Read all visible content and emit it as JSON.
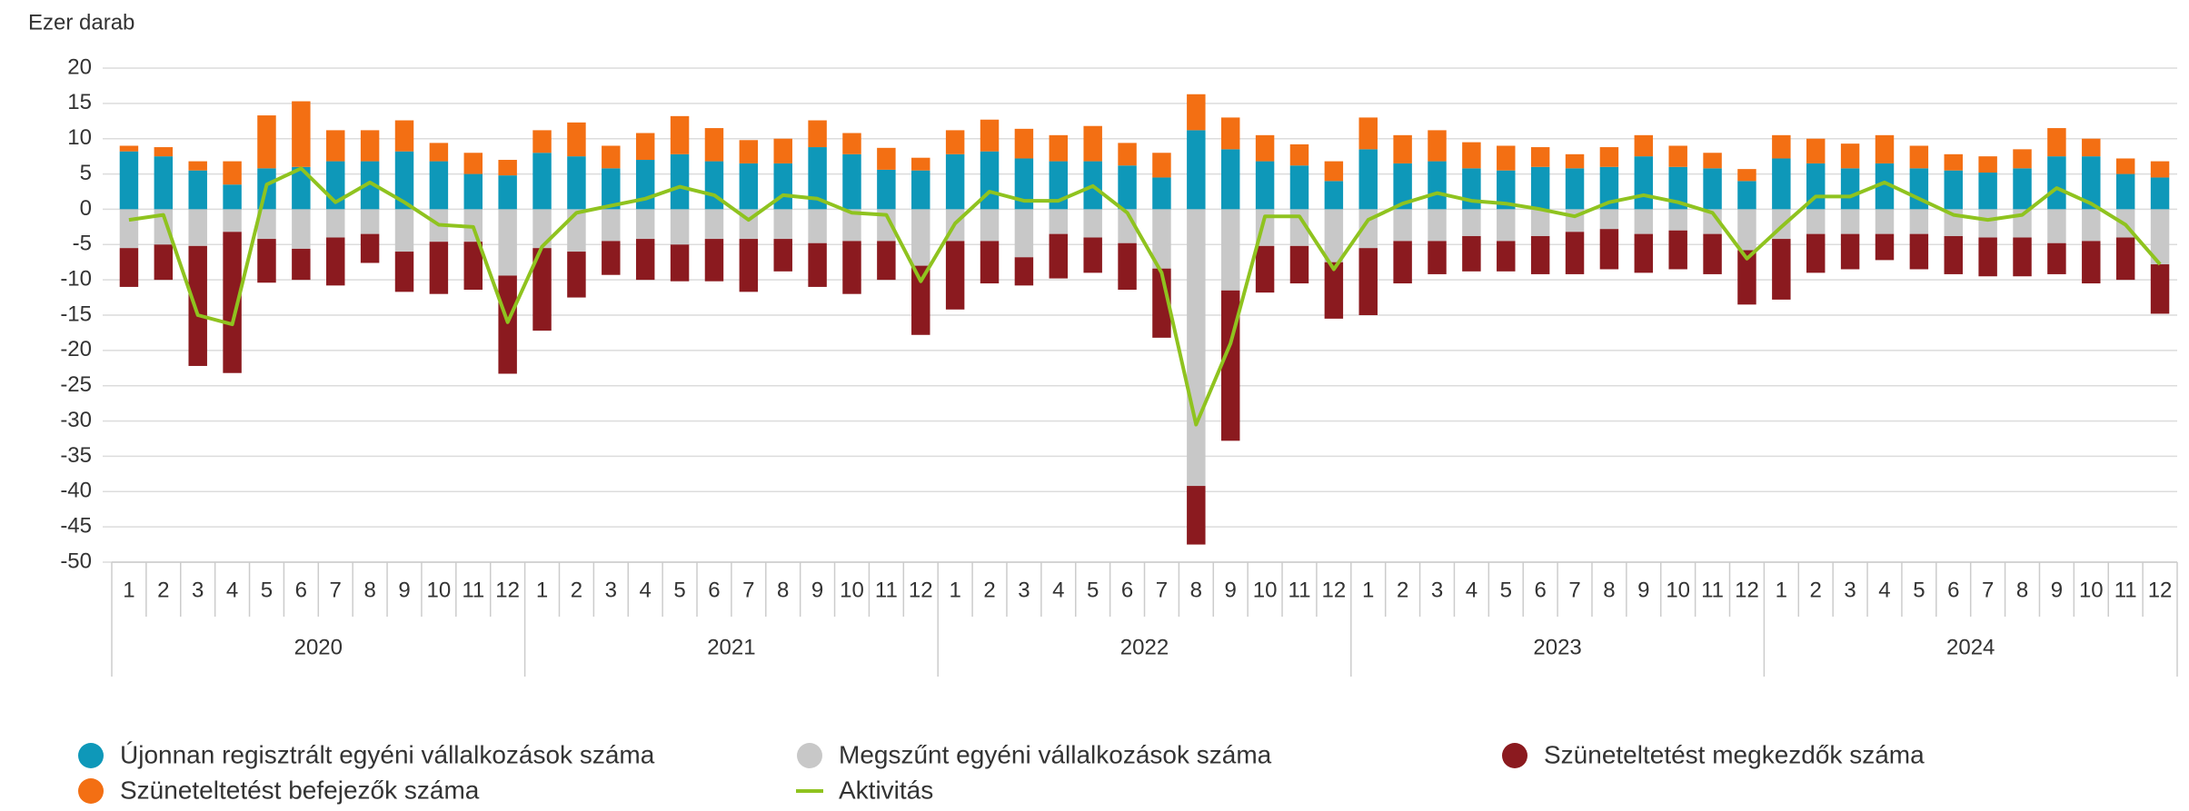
{
  "chart_data": {
    "type": "bar",
    "stacked": true,
    "y_axis_label": "Ezer darab",
    "categories": [
      "1",
      "2",
      "3",
      "4",
      "5",
      "6",
      "7",
      "8",
      "9",
      "10",
      "11",
      "12",
      "1",
      "2",
      "3",
      "4",
      "5",
      "6",
      "7",
      "8",
      "9",
      "10",
      "11",
      "12",
      "1",
      "2",
      "3",
      "4",
      "5",
      "6",
      "7",
      "8",
      "9",
      "10",
      "11",
      "12",
      "1",
      "2",
      "3",
      "4",
      "5",
      "6",
      "7",
      "8",
      "9",
      "10",
      "11",
      "12",
      "1",
      "2",
      "3",
      "4",
      "5",
      "6",
      "7",
      "8",
      "9",
      "10",
      "11",
      "12"
    ],
    "years": [
      "2020",
      "2021",
      "2022",
      "2023",
      "2024"
    ],
    "ylim": [
      -50,
      20
    ],
    "yticks": [
      -50,
      -45,
      -40,
      -35,
      -30,
      -25,
      -20,
      -15,
      -10,
      -5,
      0,
      5,
      10,
      15,
      20
    ],
    "grid": true,
    "legend": "bottom",
    "series": [
      {
        "name": "Újonnan regisztrált egyéni vállalkozások száma",
        "type": "bar",
        "color": "#0e98b9",
        "values": [
          8.2,
          7.5,
          5.5,
          3.5,
          5.8,
          6,
          6.8,
          6.8,
          8.2,
          6.8,
          5,
          4.8,
          8,
          7.5,
          5.8,
          7,
          7.8,
          6.8,
          6.5,
          6.5,
          8.8,
          7.8,
          5.6,
          5.5,
          7.8,
          8.2,
          7.2,
          6.8,
          6.8,
          6.2,
          4.5,
          11.2,
          8.5,
          6.8,
          6.2,
          4,
          8.5,
          6.5,
          6.8,
          5.8,
          5.5,
          6,
          5.8,
          6,
          7.5,
          6,
          5.8,
          4,
          7.2,
          6.5,
          5.8,
          6.5,
          5.8,
          5.5,
          5.2,
          5.8,
          7.5,
          7.5,
          5,
          4.5
        ]
      },
      {
        "name": "Megszűnt egyéni vállalkozások száma",
        "type": "bar",
        "color": "#c8c8c8",
        "values": [
          -5.5,
          -5,
          -5.2,
          -3.2,
          -4.2,
          -5.6,
          -4,
          -3.5,
          -6,
          -4.6,
          -4.6,
          -9.4,
          -5.5,
          -6,
          -4.5,
          -4.2,
          -5,
          -4.2,
          -4.2,
          -4.2,
          -4.8,
          -4.5,
          -4.5,
          -8,
          -4.5,
          -4.5,
          -6.8,
          -3.5,
          -4,
          -4.8,
          -8.4,
          -39.2,
          -11.5,
          -5.2,
          -5.2,
          -7.5,
          -5.5,
          -4.5,
          -4.5,
          -3.8,
          -4.5,
          -3.8,
          -3.2,
          -2.8,
          -3.5,
          -3,
          -3.5,
          -5.8,
          -4.2,
          -3.5,
          -3.5,
          -3.5,
          -3.5,
          -3.8,
          -4,
          -4,
          -4.8,
          -4.5,
          -4,
          -7.8
        ]
      },
      {
        "name": "Szüneteltetést megkezdők száma",
        "type": "bar",
        "color": "#8b1a1f",
        "values": [
          -5.5,
          -5,
          -17,
          -20,
          -6.2,
          -4.4,
          -6.8,
          -4.1,
          -5.7,
          -7.4,
          -6.8,
          -13.9,
          -11.7,
          -6.5,
          -4.8,
          -5.8,
          -5.2,
          -6,
          -7.5,
          -4.6,
          -6.2,
          -7.5,
          -5.5,
          -9.8,
          -9.7,
          -6,
          -4,
          -6.3,
          -5,
          -6.6,
          -9.8,
          -8.3,
          -21.3,
          -6.6,
          -5.3,
          -8,
          -9.5,
          -6,
          -4.7,
          -5,
          -4.3,
          -5.4,
          -6,
          -5.7,
          -5.5,
          -5.5,
          -5.7,
          -7.7,
          -8.6,
          -5.5,
          -5,
          -3.7,
          -5,
          -5.4,
          -5.5,
          -5.5,
          -4.4,
          -6,
          -6,
          -7
        ]
      },
      {
        "name": "Szüneteltetést befejezők száma",
        "type": "bar",
        "color": "#f36f13",
        "values": [
          0.8,
          1.3,
          1.3,
          3.3,
          7.5,
          9.3,
          4.4,
          4.4,
          4.4,
          2.6,
          3,
          2.2,
          3.2,
          4.8,
          3.2,
          3.8,
          5.4,
          4.7,
          3.3,
          3.5,
          3.8,
          3,
          3.1,
          1.8,
          3.4,
          4.5,
          4.2,
          3.7,
          5,
          3.2,
          3.5,
          5.1,
          4.5,
          3.7,
          3,
          2.8,
          4.5,
          4,
          4.4,
          3.7,
          3.5,
          2.8,
          2,
          2.8,
          3,
          3,
          2.2,
          1.7,
          3.3,
          3.5,
          3.5,
          4,
          3.2,
          2.3,
          2.3,
          2.7,
          4,
          2.5,
          2.2,
          2.3
        ]
      },
      {
        "name": "Aktivitás",
        "type": "line",
        "color": "#8fc31f",
        "values": [
          -1.5,
          -0.8,
          -15,
          -16.3,
          3.5,
          5.8,
          1,
          3.8,
          1,
          -2.2,
          -2.5,
          -16,
          -5.3,
          -0.5,
          0.5,
          1.5,
          3.2,
          2,
          -1.5,
          2,
          1.5,
          -0.5,
          -0.8,
          -10.2,
          -2,
          2.5,
          1.2,
          1.2,
          3.3,
          -0.5,
          -9,
          -30.5,
          -19,
          -1,
          -1,
          -8.5,
          -1.5,
          0.8,
          2.3,
          1.2,
          0.8,
          0,
          -1,
          1,
          2,
          1,
          -0.5,
          -7,
          -2.5,
          1.8,
          1.8,
          3.8,
          1.5,
          -0.8,
          -1.5,
          -0.8,
          3,
          0.8,
          -2.2,
          -7.8
        ]
      }
    ]
  }
}
